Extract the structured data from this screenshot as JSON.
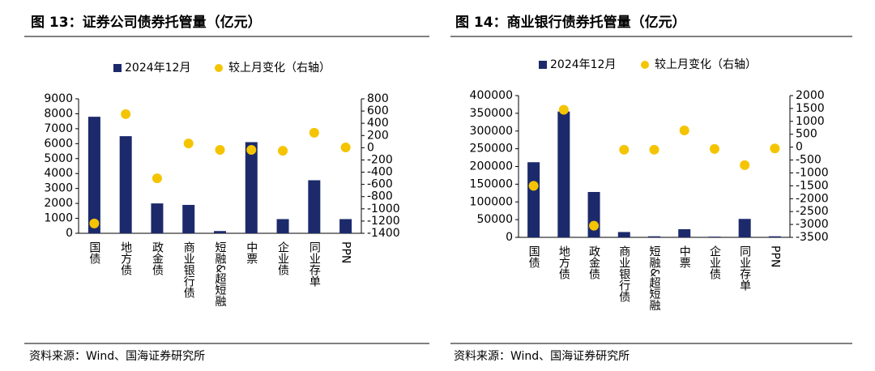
{
  "chart_data": [
    {
      "type": "bar",
      "title": "图 13：证券公司债券托管量（亿元）",
      "categories": [
        "国债",
        "地方债",
        "政金债",
        "商业银行债",
        "短融&超短融",
        "中票",
        "企业债",
        "同业存单",
        "PPN"
      ],
      "series": [
        {
          "name": "2024年12月",
          "color": "#1c2a6b",
          "type": "bar",
          "values": [
            7800,
            6500,
            2000,
            1900,
            150,
            6100,
            950,
            3550,
            950
          ]
        },
        {
          "name": "较上月变化（右轴）",
          "color": "#f5c400",
          "type": "scatter",
          "axis": "y2",
          "values": [
            -1240,
            550,
            -500,
            70,
            -35,
            -35,
            -50,
            245,
            5
          ]
        }
      ],
      "ylim": [
        0,
        9000
      ],
      "yticks": [
        0,
        1000,
        2000,
        3000,
        4000,
        5000,
        6000,
        7000,
        8000,
        9000
      ],
      "y2lim": [
        -1400,
        800
      ],
      "y2ticks": [
        -1400,
        -1200,
        -1000,
        -800,
        -600,
        -400,
        -200,
        0,
        200,
        400,
        600,
        800
      ],
      "source": "资料来源：Wind、国海证券研究所"
    },
    {
      "type": "bar",
      "title": "图 14：商业银行债券托管量（亿元）",
      "categories": [
        "国债",
        "地方债",
        "政金债",
        "商业银行债",
        "短融&超短融",
        "中票",
        "企业债",
        "同业存单",
        "PPN"
      ],
      "series": [
        {
          "name": "2024年12月",
          "color": "#1c2a6b",
          "type": "bar",
          "values": [
            212000,
            355000,
            128000,
            15000,
            3000,
            23000,
            2000,
            52000,
            3000
          ]
        },
        {
          "name": "较上月变化（右轴）",
          "color": "#f5c400",
          "type": "scatter",
          "axis": "y2",
          "values": [
            -1500,
            1450,
            -3050,
            -100,
            -100,
            650,
            -70,
            -700,
            -50
          ]
        }
      ],
      "ylim": [
        0,
        400000
      ],
      "yticks": [
        0,
        50000,
        100000,
        150000,
        200000,
        250000,
        300000,
        350000,
        400000
      ],
      "y2lim": [
        -3500,
        2000
      ],
      "y2ticks": [
        -3500,
        -3000,
        -2500,
        -2000,
        -1500,
        -1000,
        -500,
        0,
        500,
        1000,
        1500,
        2000
      ],
      "source": "资料来源：Wind、国海证券研究所"
    }
  ]
}
